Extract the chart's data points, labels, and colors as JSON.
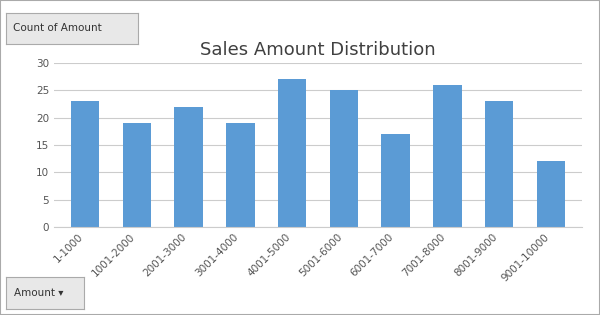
{
  "title": "Sales Amount Distribution",
  "categories": [
    "1-1000",
    "1001-2000",
    "2001-3000",
    "3001-4000",
    "4001-5000",
    "5001-6000",
    "6001-7000",
    "7001-8000",
    "8001-9000",
    "9001-10000"
  ],
  "values": [
    23,
    19,
    22,
    19,
    27,
    25,
    17,
    26,
    23,
    12
  ],
  "bar_color": "#5B9BD5",
  "ylim": [
    0,
    30
  ],
  "yticks": [
    0,
    5,
    10,
    15,
    20,
    25,
    30
  ],
  "ylabel_label": "Count of Amount",
  "xlabel_label": "Amount",
  "title_fontsize": 13,
  "tick_fontsize": 7.5,
  "background_color": "#FFFFFF",
  "grid_color": "#CCCCCC",
  "border_color": "#AAAAAA",
  "bar_width": 0.55
}
